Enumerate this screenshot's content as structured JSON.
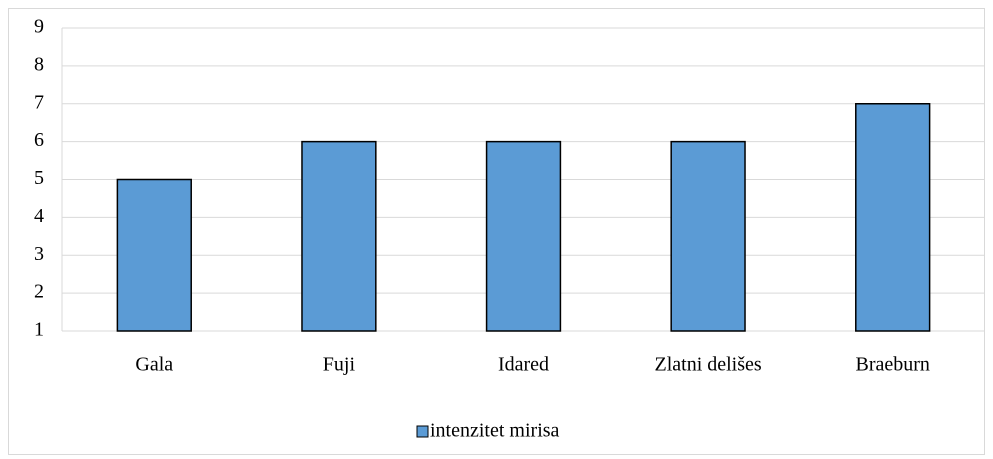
{
  "chart_data": {
    "type": "bar",
    "categories": [
      "Gala",
      "Fuji",
      "Idared",
      "Zlatni delišes",
      "Braeburn"
    ],
    "series": [
      {
        "name": "intenzitet mirisa",
        "color": "#5b9bd5",
        "values": [
          5,
          6,
          6,
          6,
          7
        ]
      }
    ],
    "ylim": [
      1,
      9
    ],
    "yticks": [
      1,
      2,
      3,
      4,
      5,
      6,
      7,
      8,
      9
    ],
    "grid": true,
    "legend": "bottom"
  }
}
